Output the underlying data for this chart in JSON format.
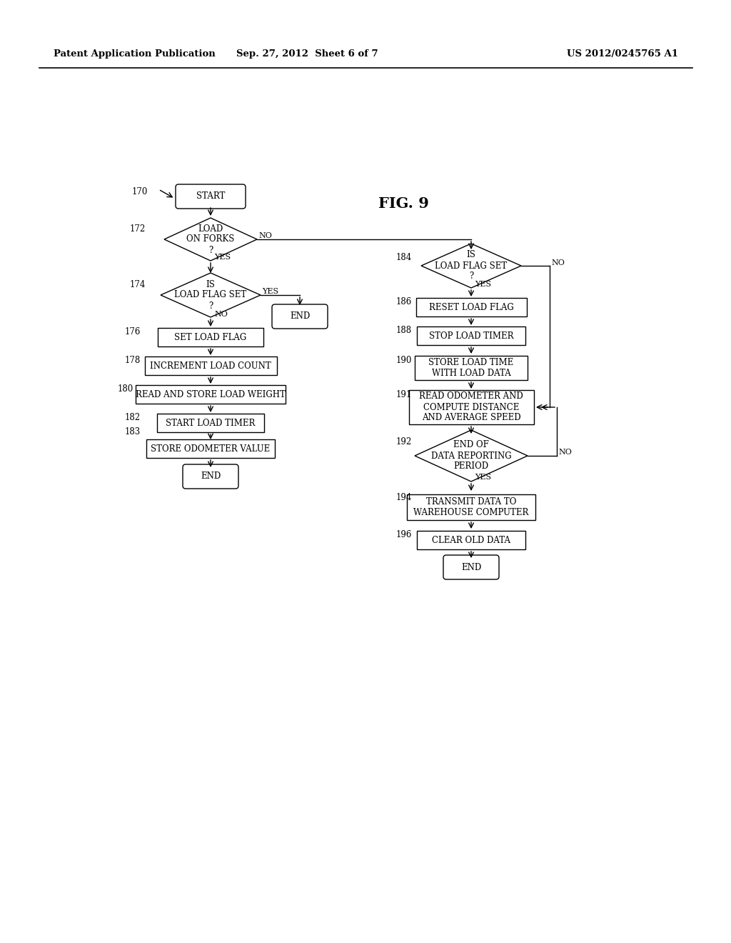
{
  "header_left": "Patent Application Publication",
  "header_mid": "Sep. 27, 2012  Sheet 6 of 7",
  "header_right": "US 2012/0245765 A1",
  "fig_label": "FIG. 9",
  "background": "#ffffff"
}
